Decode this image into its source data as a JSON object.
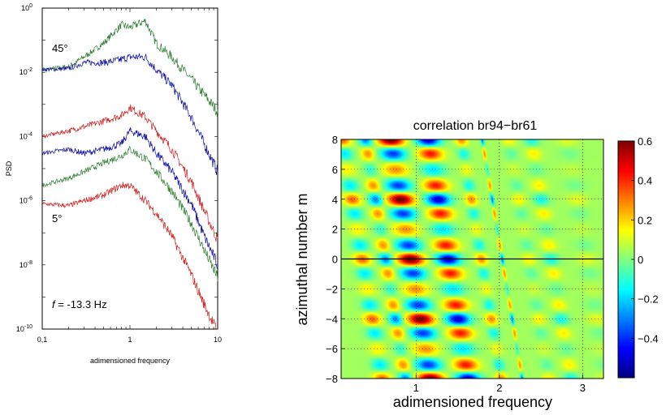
{
  "chart_data": [
    {
      "type": "line",
      "title": "",
      "xlabel": "adimensioned frequency",
      "ylabel": "PSD",
      "xscale": "log",
      "yscale": "log",
      "xlim": [
        0.1,
        10
      ],
      "ylim": [
        1e-10,
        1
      ],
      "x_ticks": [
        {
          "value": 0.1,
          "label": "0,1"
        },
        {
          "value": 1,
          "label": "1"
        },
        {
          "value": 10,
          "label": "10"
        }
      ],
      "y_ticks": [
        {
          "value": 1,
          "label": "10",
          "exp": "0"
        },
        {
          "value": 0.01,
          "label": "10",
          "exp": "-2"
        },
        {
          "value": 0.0001,
          "label": "10",
          "exp": "-4"
        },
        {
          "value": 1e-06,
          "label": "10",
          "exp": "-6"
        },
        {
          "value": 1e-08,
          "label": "10",
          "exp": "-8"
        },
        {
          "value": 1e-10,
          "label": "10",
          "exp": "-10"
        }
      ],
      "annotations": [
        {
          "text": "45°",
          "x": 0.13,
          "y": 0.1
        },
        {
          "text": "5°",
          "x": 0.13,
          "y": 5e-07
        },
        {
          "text_italic": "f",
          "text": " = -13.3 Hz",
          "x": 0.13,
          "y": 1e-09
        }
      ],
      "series": [
        {
          "color": "#2e7d32",
          "x": [
            0.1,
            0.2,
            0.3,
            0.5,
            0.8,
            1.0,
            1.5,
            2,
            3,
            5,
            7,
            10
          ],
          "y": [
            0.012,
            0.015,
            0.03,
            0.08,
            0.3,
            0.25,
            0.4,
            0.08,
            0.03,
            0.006,
            0.002,
            0.0006
          ]
        },
        {
          "color": "#0a0aa0",
          "x": [
            0.1,
            0.2,
            0.3,
            0.5,
            0.8,
            1.0,
            1.5,
            2,
            3,
            5,
            7,
            10
          ],
          "y": [
            0.012,
            0.013,
            0.02,
            0.02,
            0.025,
            0.03,
            0.03,
            0.012,
            0.004,
            0.0004,
            6e-05,
            8e-06
          ]
        },
        {
          "color": "#cc1e1e",
          "x": [
            0.1,
            0.2,
            0.3,
            0.5,
            0.8,
            1.0,
            1.5,
            2,
            3,
            5,
            7,
            10
          ],
          "y": [
            0.0001,
            0.00015,
            0.0002,
            0.0003,
            0.00045,
            0.0008,
            0.0004,
            0.00015,
            4e-05,
            4e-06,
            5e-07,
            6e-08
          ]
        },
        {
          "color": "#0a0aa0",
          "x": [
            0.1,
            0.2,
            0.3,
            0.5,
            0.8,
            1.0,
            1.5,
            2,
            3,
            5,
            7,
            10
          ],
          "y": [
            3e-05,
            4e-05,
            3e-05,
            4e-05,
            6e-05,
            0.00015,
            0.0001,
            3e-05,
            8e-06,
            8e-07,
            8e-08,
            1e-08
          ]
        },
        {
          "color": "#2e7d32",
          "x": [
            0.1,
            0.2,
            0.3,
            0.5,
            0.8,
            1.0,
            1.5,
            2,
            3,
            5,
            7,
            10
          ],
          "y": [
            3e-06,
            5e-06,
            8e-06,
            1.5e-05,
            2.5e-05,
            4e-05,
            2e-05,
            8e-06,
            2e-06,
            2e-07,
            3e-08,
            4e-09
          ]
        },
        {
          "color": "#cc1e1e",
          "x": [
            0.1,
            0.2,
            0.3,
            0.5,
            0.8,
            1.0,
            1.5,
            2,
            3,
            5,
            7,
            10
          ],
          "y": [
            8e-07,
            7e-07,
            1e-06,
            1.5e-06,
            3e-06,
            3e-06,
            1e-06,
            4e-07,
            8e-08,
            5e-09,
            6e-10,
            8e-11
          ]
        }
      ]
    },
    {
      "type": "heatmap",
      "title": "correlation br94−br61",
      "xlabel": "adimensioned frequency",
      "ylabel": "azimuthal number m",
      "xlim": [
        0.1,
        3.25
      ],
      "ylim": [
        -8,
        8
      ],
      "x_ticks": [
        {
          "value": 1,
          "label": "1"
        },
        {
          "value": 2,
          "label": "2"
        },
        {
          "value": 3,
          "label": "3"
        }
      ],
      "y_ticks": [
        {
          "value": 8,
          "label": "8"
        },
        {
          "value": 6,
          "label": "6"
        },
        {
          "value": 4,
          "label": "4"
        },
        {
          "value": 2,
          "label": "2"
        },
        {
          "value": 0,
          "label": "0"
        },
        {
          "value": -2,
          "label": "−2"
        },
        {
          "value": -4,
          "label": "−4"
        },
        {
          "value": -6,
          "label": "−6"
        },
        {
          "value": -8,
          "label": "−8"
        }
      ],
      "grid": "dotted",
      "horizontal_line_at": 0,
      "colorbar": {
        "range": [
          -0.6,
          0.6
        ],
        "ticks": [
          {
            "value": 0.6,
            "label": "0.6"
          },
          {
            "value": 0.4,
            "label": "0.4"
          },
          {
            "value": 0.2,
            "label": "0.2"
          },
          {
            "value": 0,
            "label": "0"
          },
          {
            "value": -0.2,
            "label": "−0.2"
          },
          {
            "value": -0.4,
            "label": "−0.4"
          }
        ]
      },
      "blobs": [
        {
          "f": 0.35,
          "width": 0.1,
          "amp": 0.3,
          "phase": 0
        },
        {
          "f": 0.63,
          "width": 0.08,
          "amp": 0.35,
          "phase": 3.14
        },
        {
          "f": 0.93,
          "width": 0.15,
          "amp": 0.6,
          "phase": 0
        },
        {
          "f": 1.38,
          "width": 0.14,
          "amp": 0.55,
          "phase": 3.14
        },
        {
          "f": 1.78,
          "width": 0.07,
          "amp": 0.25,
          "phase": 0
        },
        {
          "f": 2.03,
          "width": 0.02,
          "amp": 0.35,
          "phase": 3.14
        },
        {
          "f": 2.35,
          "width": 0.08,
          "amp": 0.12,
          "phase": 0
        },
        {
          "f": 2.62,
          "width": 0.09,
          "amp": 0.18,
          "phase": 3.14
        },
        {
          "f": 3.05,
          "width": 0.12,
          "amp": 0.08,
          "phase": 0
        }
      ]
    }
  ]
}
